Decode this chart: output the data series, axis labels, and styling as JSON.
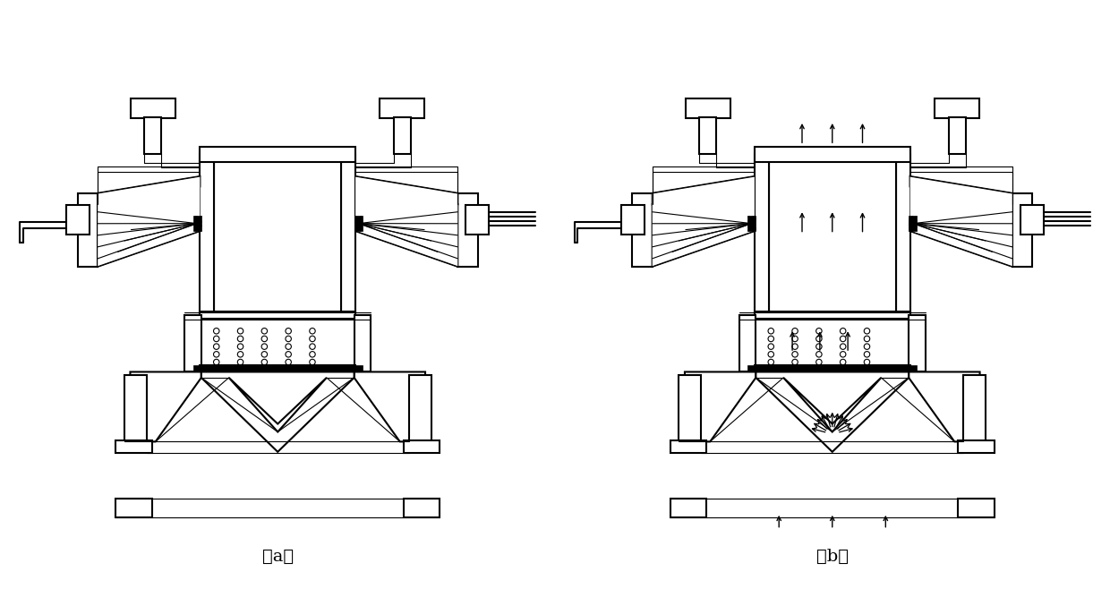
{
  "bg_color": "#ffffff",
  "line_color": "#000000",
  "label_a": "（a）",
  "label_b": "（b）",
  "label_fontsize": 14,
  "lw_main": 1.5,
  "lw_thick": 2.0,
  "lw_thin": 0.8,
  "lw_wall": 1.2
}
